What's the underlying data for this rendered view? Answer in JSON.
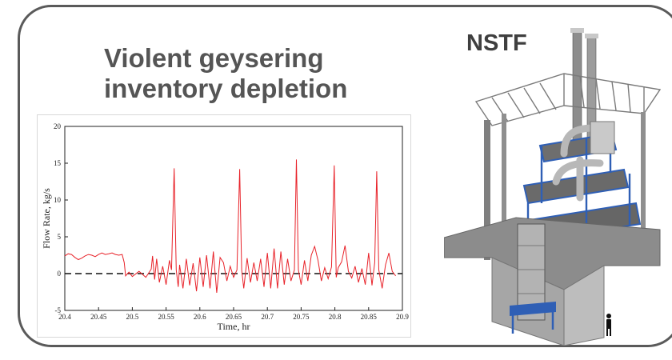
{
  "slide": {
    "title_line1": "Violent geysering",
    "title_line2": "inventory depletion",
    "facility_label": "NSTF"
  },
  "colors": {
    "frame": "#5a5a5a",
    "title": "#555555",
    "series": "#e8232a",
    "zero_line": "#111111",
    "steel_blue": "#2f5fb5",
    "concrete": "#9a9a9a"
  },
  "icons": {
    "facility": "nstf-facility-3d-render",
    "person": "human-scale-figure-icon"
  },
  "chart_data": {
    "type": "line",
    "xlabel": "Time, hr",
    "ylabel": "Flow Rate, kg/s",
    "xlim": [
      20.4,
      20.9
    ],
    "ylim": [
      -5,
      20
    ],
    "xticks": [
      20.4,
      20.45,
      20.5,
      20.55,
      20.6,
      20.65,
      20.7,
      20.75,
      20.8,
      20.85,
      20.9
    ],
    "xtick_labels": [
      "20.4",
      "20.45",
      "20.5",
      "20.55",
      "20.6",
      "20.65",
      "20.7",
      "20.75",
      "20.8",
      "20.85",
      "20.9"
    ],
    "yticks": [
      -5,
      0,
      5,
      10,
      15,
      20
    ],
    "ytick_labels": [
      "-5",
      "0",
      "5",
      "10",
      "15",
      "20"
    ],
    "grid": false,
    "reference_line": {
      "y": 0,
      "style": "dashed"
    },
    "series": [
      {
        "x": [
          20.4,
          20.405,
          20.41,
          20.415,
          20.42,
          20.425,
          20.43,
          20.435,
          20.44,
          20.445,
          20.45,
          20.455,
          20.46,
          20.465,
          20.47,
          20.475,
          20.48,
          20.485,
          20.488,
          20.49,
          20.495,
          20.5,
          20.51,
          20.52,
          20.528,
          20.53,
          20.533,
          20.536,
          20.54,
          20.545,
          20.55,
          20.555,
          20.558,
          20.562,
          20.565,
          20.568,
          20.57,
          20.575,
          20.58,
          20.585,
          20.59,
          20.595,
          20.6,
          20.605,
          20.61,
          20.615,
          20.62,
          20.625,
          20.63,
          20.635,
          20.64,
          20.645,
          20.65,
          20.655,
          20.659,
          20.662,
          20.665,
          20.67,
          20.675,
          20.68,
          20.685,
          20.69,
          20.695,
          20.7,
          20.705,
          20.71,
          20.715,
          20.72,
          20.725,
          20.73,
          20.735,
          20.74,
          20.743,
          20.746,
          20.75,
          20.755,
          20.76,
          20.765,
          20.77,
          20.775,
          20.78,
          20.785,
          20.79,
          20.795,
          20.799,
          20.802,
          20.805,
          20.81,
          20.815,
          20.82,
          20.825,
          20.83,
          20.835,
          20.84,
          20.845,
          20.85,
          20.855,
          20.859,
          20.862,
          20.865,
          20.87,
          20.875,
          20.88,
          20.885,
          20.89
        ],
        "values": [
          2.4,
          2.7,
          2.6,
          2.2,
          1.9,
          2.1,
          2.4,
          2.6,
          2.5,
          2.3,
          2.6,
          2.8,
          2.6,
          2.7,
          2.8,
          2.6,
          2.5,
          2.6,
          1.5,
          -0.3,
          0.2,
          -0.4,
          0.3,
          -0.5,
          0.6,
          2.4,
          -0.8,
          2.0,
          -1.2,
          1.0,
          -1.5,
          1.8,
          0.5,
          14.3,
          0.5,
          -1.8,
          1.2,
          -2.0,
          2.0,
          -1.6,
          1.4,
          -2.4,
          2.2,
          -1.8,
          2.5,
          -2.0,
          3.0,
          -2.6,
          2.2,
          1.5,
          -1.0,
          1.0,
          -0.5,
          0.5,
          14.2,
          0.5,
          -2.0,
          2.1,
          -1.2,
          1.5,
          -1.0,
          2.0,
          -1.8,
          2.8,
          -2.0,
          3.4,
          -2.0,
          3.0,
          -1.5,
          2.0,
          -1.0,
          0.5,
          15.5,
          0.5,
          -1.5,
          1.8,
          -1.0,
          2.5,
          3.7,
          1.8,
          -1.0,
          0.8,
          -0.7,
          0.9,
          14.7,
          -0.5,
          0.8,
          1.6,
          3.8,
          0.3,
          -0.6,
          1.0,
          -1.2,
          0.7,
          -1.5,
          2.8,
          -1.6,
          1.5,
          13.9,
          0.5,
          -2.0,
          1.2,
          2.8,
          0.3,
          -0.3
        ]
      }
    ]
  }
}
